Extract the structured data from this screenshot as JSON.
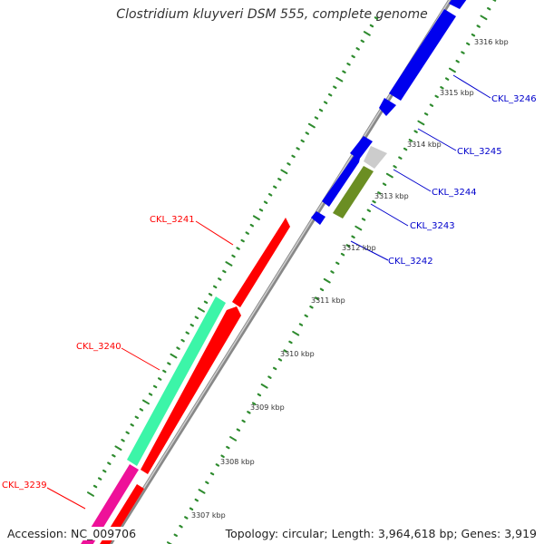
{
  "title": "Clostridium kluyveri DSM 555, complete genome",
  "accession": "Accession: NC_009706",
  "summary": "Topology: circular; Length: 3,964,618 bp; Genes: 3,919",
  "colors": {
    "axis": "#999999",
    "tick": "#2e8b2e",
    "forward_label": "#ff0000",
    "reverse_label": "#0000cc",
    "blue": "#0000ee",
    "red": "#ff0000",
    "mint": "#3cf5a8",
    "magenta": "#ee1199",
    "olive": "#6b8e23",
    "gray": "#cccccc"
  },
  "scale_labels": [
    "3307 kbp",
    "3308 kbp",
    "3309 kbp",
    "3310 kbp",
    "3311 kbp",
    "3312 kbp",
    "3313 kbp",
    "3314 kbp",
    "3315 kbp",
    "3316 kbp"
  ],
  "gene_labels": {
    "forward": [
      "CKL_3239",
      "CKL_3240",
      "CKL_3241"
    ],
    "reverse": [
      "CKL_3242",
      "CKL_3243",
      "CKL_3244",
      "CKL_3245",
      "CKL_3246"
    ]
  }
}
